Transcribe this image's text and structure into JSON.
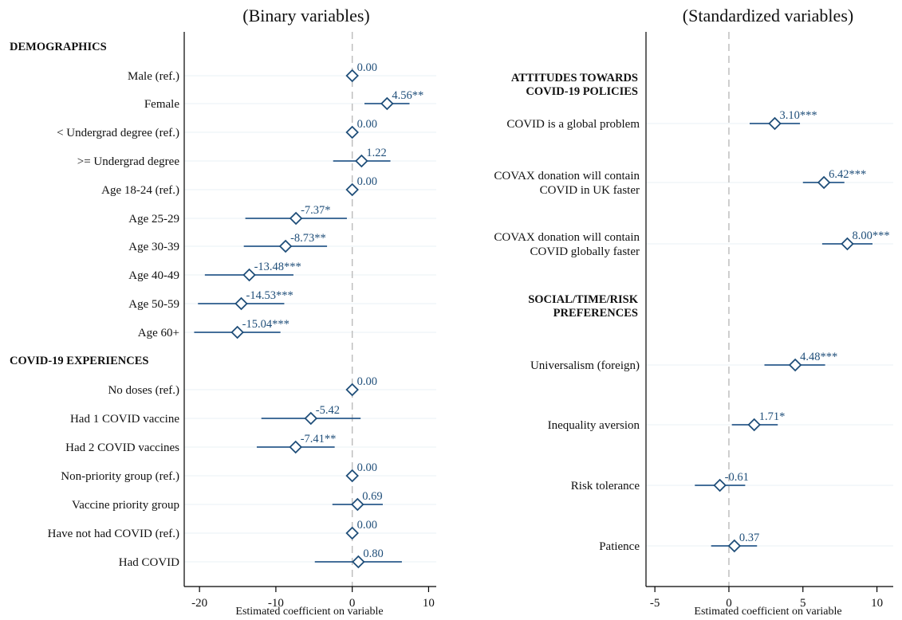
{
  "chart_data": [
    {
      "type": "scatter",
      "title": "(Binary variables)",
      "xlabel": "Estimated coefficient on variable",
      "xlim": [
        -22,
        11
      ],
      "xticks": [
        -20,
        -10,
        0,
        10
      ],
      "reference_line": 0,
      "grid": true,
      "section_headers": [
        "DEMOGRAPHICS",
        "COVID-19 EXPERIENCES"
      ],
      "rows": [
        {
          "kind": "header",
          "label": "DEMOGRAPHICS"
        },
        {
          "kind": "point",
          "label": "Male (ref.)",
          "estimate": 0.0,
          "ci": null,
          "value_label": "0.00"
        },
        {
          "kind": "point",
          "label": "Female",
          "estimate": 4.56,
          "ci": [
            1.6,
            7.5
          ],
          "value_label": "4.56**"
        },
        {
          "kind": "point",
          "label": "< Undergrad degree (ref.)",
          "estimate": 0.0,
          "ci": null,
          "value_label": "0.00"
        },
        {
          "kind": "point",
          "label": ">= Undergrad degree",
          "estimate": 1.22,
          "ci": [
            -2.5,
            5.0
          ],
          "value_label": "1.22"
        },
        {
          "kind": "point",
          "label": "Age 18-24 (ref.)",
          "estimate": 0.0,
          "ci": null,
          "value_label": "0.00"
        },
        {
          "kind": "point",
          "label": "Age 25-29",
          "estimate": -7.37,
          "ci": [
            -14.0,
            -0.7
          ],
          "value_label": "-7.37*"
        },
        {
          "kind": "point",
          "label": "Age 30-39",
          "estimate": -8.73,
          "ci": [
            -14.2,
            -3.3
          ],
          "value_label": "-8.73**"
        },
        {
          "kind": "point",
          "label": "Age 40-49",
          "estimate": -13.48,
          "ci": [
            -19.3,
            -7.7
          ],
          "value_label": "-13.48***"
        },
        {
          "kind": "point",
          "label": "Age 50-59",
          "estimate": -14.53,
          "ci": [
            -20.2,
            -8.9
          ],
          "value_label": "-14.53***"
        },
        {
          "kind": "point",
          "label": "Age 60+",
          "estimate": -15.04,
          "ci": [
            -20.7,
            -9.4
          ],
          "value_label": "-15.04***"
        },
        {
          "kind": "header",
          "label": "COVID-19 EXPERIENCES"
        },
        {
          "kind": "point",
          "label": "No doses (ref.)",
          "estimate": 0.0,
          "ci": null,
          "value_label": "0.00"
        },
        {
          "kind": "point",
          "label": "Had 1 COVID vaccine",
          "estimate": -5.42,
          "ci": [
            -11.9,
            1.1
          ],
          "value_label": "-5.42"
        },
        {
          "kind": "point",
          "label": "Had 2 COVID vaccines",
          "estimate": -7.41,
          "ci": [
            -12.5,
            -2.3
          ],
          "value_label": "-7.41**"
        },
        {
          "kind": "point",
          "label": "Non-priority group (ref.)",
          "estimate": 0.0,
          "ci": null,
          "value_label": "0.00"
        },
        {
          "kind": "point",
          "label": "Vaccine priority group",
          "estimate": 0.69,
          "ci": [
            -2.6,
            4.0
          ],
          "value_label": "0.69"
        },
        {
          "kind": "point",
          "label": "Have not had COVID (ref.)",
          "estimate": 0.0,
          "ci": null,
          "value_label": "0.00"
        },
        {
          "kind": "point",
          "label": "Had COVID",
          "estimate": 0.8,
          "ci": [
            -4.9,
            6.5
          ],
          "value_label": "0.80"
        }
      ]
    },
    {
      "type": "scatter",
      "title": "(Standardized variables)",
      "xlabel": "Estimated coefficient on variable",
      "xlim": [
        -5.6,
        11.1
      ],
      "xticks": [
        -5,
        0,
        5,
        10
      ],
      "reference_line": 0,
      "grid": true,
      "section_headers": [
        "ATTITUDES TOWARDS COVID-19 POLICIES",
        "SOCIAL/TIME/RISK PREFERENCES"
      ],
      "rows": [
        {
          "kind": "header",
          "lines": [
            "ATTITUDES TOWARDS",
            "COVID-19 POLICIES"
          ]
        },
        {
          "kind": "point",
          "lines": [
            "COVID is a global problem"
          ],
          "estimate": 3.1,
          "ci": [
            1.4,
            4.8
          ],
          "value_label": "3.10***"
        },
        {
          "kind": "point",
          "lines": [
            "COVAX donation will contain",
            "COVID in UK faster"
          ],
          "estimate": 6.42,
          "ci": [
            5.0,
            7.8
          ],
          "value_label": "6.42***"
        },
        {
          "kind": "point",
          "lines": [
            "COVAX donation will contain",
            "COVID globally faster"
          ],
          "estimate": 8.0,
          "ci": [
            6.3,
            9.7
          ],
          "value_label": "8.00***"
        },
        {
          "kind": "header",
          "lines": [
            "SOCIAL/TIME/RISK",
            "PREFERENCES"
          ]
        },
        {
          "kind": "point",
          "lines": [
            "Universalism (foreign)"
          ],
          "estimate": 4.48,
          "ci": [
            2.4,
            6.5
          ],
          "value_label": "4.48***"
        },
        {
          "kind": "point",
          "lines": [
            "Inequality aversion"
          ],
          "estimate": 1.71,
          "ci": [
            0.2,
            3.3
          ],
          "value_label": "1.71*"
        },
        {
          "kind": "point",
          "lines": [
            "Risk tolerance"
          ],
          "estimate": -0.61,
          "ci": [
            -2.3,
            1.1
          ],
          "value_label": "-0.61"
        },
        {
          "kind": "point",
          "lines": [
            "Patience"
          ],
          "estimate": 0.37,
          "ci": [
            -1.2,
            1.9
          ],
          "value_label": "0.37"
        }
      ]
    }
  ],
  "colors": {
    "marker": "#1f4e79",
    "ci_line": "#2b5b8c",
    "data_label": "#1f4e79",
    "grid": "#eef4f6",
    "reference": "#bbbbbb",
    "axis": "#000000"
  }
}
